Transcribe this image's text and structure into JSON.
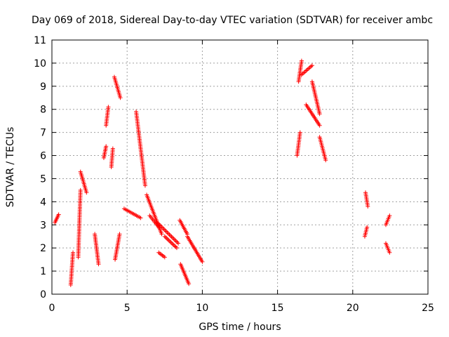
{
  "chart_data": {
    "type": "scatter",
    "title": "Day 069 of 2018, Sidereal Day-to-day VTEC variation (SDTVAR) for receiver ambc",
    "xlabel": "GPS time / hours",
    "ylabel": "SDTVAR / TECUs",
    "xlim": [
      0,
      25
    ],
    "ylim": [
      0,
      11
    ],
    "xticks": [
      0,
      5,
      10,
      15,
      20,
      25
    ],
    "yticks": [
      0,
      1,
      2,
      3,
      4,
      5,
      6,
      7,
      8,
      9,
      10,
      11
    ],
    "grid": true,
    "marker": "+",
    "marker_color": "#ff0000",
    "series": [
      {
        "name": "SDTVAR",
        "segments": [
          {
            "x": [
              0.2,
              0.45
            ],
            "y": [
              3.1,
              3.45
            ]
          },
          {
            "x": [
              1.25,
              1.4
            ],
            "y": [
              0.4,
              1.8
            ]
          },
          {
            "x": [
              1.75,
              1.9
            ],
            "y": [
              1.6,
              4.5
            ]
          },
          {
            "x": [
              1.9,
              2.3
            ],
            "y": [
              5.3,
              4.4
            ]
          },
          {
            "x": [
              2.85,
              3.1
            ],
            "y": [
              2.6,
              1.3
            ]
          },
          {
            "x": [
              3.45,
              3.6
            ],
            "y": [
              5.9,
              6.4
            ]
          },
          {
            "x": [
              3.6,
              3.75
            ],
            "y": [
              7.3,
              8.1
            ]
          },
          {
            "x": [
              3.95,
              4.05
            ],
            "y": [
              5.5,
              6.3
            ]
          },
          {
            "x": [
              4.15,
              4.55
            ],
            "y": [
              9.4,
              8.5
            ]
          },
          {
            "x": [
              4.2,
              4.5
            ],
            "y": [
              1.5,
              2.6
            ]
          },
          {
            "x": [
              4.8,
              5.9
            ],
            "y": [
              3.7,
              3.3
            ]
          },
          {
            "x": [
              5.6,
              6.2
            ],
            "y": [
              7.9,
              4.7
            ]
          },
          {
            "x": [
              6.3,
              7.3
            ],
            "y": [
              4.3,
              2.6
            ]
          },
          {
            "x": [
              6.5,
              7.1
            ],
            "y": [
              3.4,
              2.9
            ]
          },
          {
            "x": [
              7.1,
              7.5
            ],
            "y": [
              1.8,
              1.6
            ]
          },
          {
            "x": [
              7.0,
              8.4
            ],
            "y": [
              3.1,
              2.2
            ]
          },
          {
            "x": [
              7.5,
              8.3
            ],
            "y": [
              2.5,
              2.0
            ]
          },
          {
            "x": [
              8.5,
              9.0
            ],
            "y": [
              3.2,
              2.6
            ]
          },
          {
            "x": [
              9.0,
              10.0
            ],
            "y": [
              2.5,
              1.4
            ]
          },
          {
            "x": [
              8.55,
              9.1
            ],
            "y": [
              1.3,
              0.45
            ]
          },
          {
            "x": [
              16.3,
              16.5
            ],
            "y": [
              6.0,
              7.0
            ]
          },
          {
            "x": [
              16.4,
              16.6
            ],
            "y": [
              9.2,
              10.1
            ]
          },
          {
            "x": [
              16.6,
              17.3
            ],
            "y": [
              9.5,
              9.9
            ]
          },
          {
            "x": [
              16.9,
              17.8
            ],
            "y": [
              8.2,
              7.3
            ]
          },
          {
            "x": [
              17.3,
              17.8
            ],
            "y": [
              9.2,
              7.8
            ]
          },
          {
            "x": [
              17.8,
              18.2
            ],
            "y": [
              6.8,
              5.8
            ]
          },
          {
            "x": [
              20.8,
              20.95
            ],
            "y": [
              2.5,
              2.9
            ]
          },
          {
            "x": [
              20.85,
              21.0
            ],
            "y": [
              4.4,
              3.8
            ]
          },
          {
            "x": [
              22.2,
              22.45
            ],
            "y": [
              2.2,
              1.8
            ]
          },
          {
            "x": [
              22.2,
              22.45
            ],
            "y": [
              3.0,
              3.4
            ]
          }
        ]
      }
    ]
  }
}
